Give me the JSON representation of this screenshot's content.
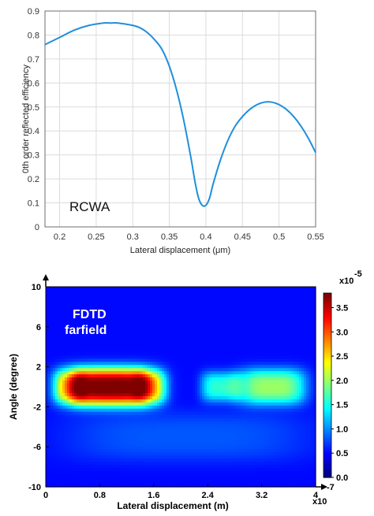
{
  "chart_data": [
    {
      "type": "line",
      "title": "",
      "xlabel": "Lateral displacement (μm)",
      "ylabel": "0th order reflected efficiency",
      "xlim": [
        0.18,
        0.55
      ],
      "ylim": [
        0,
        0.9
      ],
      "x_ticks": [
        "0.2",
        "0.25",
        "0.3",
        "0.35",
        "0.4",
        "0.45",
        "0.5",
        "0.55"
      ],
      "y_ticks": [
        "0",
        "0.1",
        "0.2",
        "0.3",
        "0.4",
        "0.5",
        "0.6",
        "0.7",
        "0.8",
        "0.9"
      ],
      "grid": true,
      "line_color": "#1f8fdc",
      "annotation": "RCWA",
      "series": [
        {
          "x": [
            0.18,
            0.2,
            0.22,
            0.24,
            0.26,
            0.27,
            0.28,
            0.3,
            0.31,
            0.32,
            0.33,
            0.34,
            0.35,
            0.36,
            0.37,
            0.38,
            0.385,
            0.39,
            0.395,
            0.4,
            0.405,
            0.41,
            0.42,
            0.43,
            0.44,
            0.45,
            0.46,
            0.47,
            0.48,
            0.49,
            0.5,
            0.51,
            0.52,
            0.53,
            0.54,
            0.55
          ],
          "y": [
            0.76,
            0.79,
            0.82,
            0.84,
            0.85,
            0.85,
            0.85,
            0.84,
            0.83,
            0.81,
            0.78,
            0.74,
            0.67,
            0.57,
            0.44,
            0.28,
            0.19,
            0.12,
            0.09,
            0.09,
            0.12,
            0.18,
            0.28,
            0.36,
            0.42,
            0.46,
            0.49,
            0.51,
            0.52,
            0.52,
            0.51,
            0.49,
            0.46,
            0.42,
            0.37,
            0.31
          ]
        }
      ]
    },
    {
      "type": "heatmap",
      "title": "",
      "xlabel": "Lateral displacement (m)",
      "ylabel": "Angle (degree)",
      "xlim": [
        0,
        4
      ],
      "ylim": [
        -10,
        10
      ],
      "x_ticks": [
        "0",
        "0.8",
        "1.6",
        "2.4",
        "3.2",
        "4"
      ],
      "y_ticks": [
        "-10",
        "-6",
        "-2",
        "2",
        "6",
        "10"
      ],
      "x_exponent_base": "x10",
      "x_exponent_power": "-7",
      "colorbar_exponent_base": "x10",
      "colorbar_exponent_power": "-5",
      "colorbar_ticks": [
        "0.0",
        "0.5",
        "1.0",
        "1.5",
        "2.0",
        "2.5",
        "3.0",
        "3.5"
      ],
      "colorbar_range": [
        0,
        3.8
      ],
      "colormap": "jet",
      "annotation_line1": "FDTD",
      "annotation_line2": "farfield",
      "background_level": 0.5,
      "blobs": [
        {
          "x_center": 0.95,
          "y_center": 0,
          "x_width": 0.7,
          "y_width": 1.9,
          "peak": 3.4
        },
        {
          "x_center": 0.35,
          "y_center": 0,
          "x_width": 0.25,
          "y_width": 1.6,
          "peak": 0.8
        },
        {
          "x_center": 1.55,
          "y_center": 0,
          "x_width": 0.25,
          "y_width": 1.6,
          "peak": 0.8
        },
        {
          "x_center": 2.6,
          "y_center": 0,
          "x_width": 0.3,
          "y_width": 1.5,
          "peak": 1.1
        },
        {
          "x_center": 3.35,
          "y_center": 0,
          "x_width": 0.5,
          "y_width": 1.8,
          "peak": 1.5
        },
        {
          "x_center": 2.1,
          "y_center": -5,
          "x_width": 1.8,
          "y_width": 2.5,
          "peak": 0.3
        }
      ]
    }
  ]
}
